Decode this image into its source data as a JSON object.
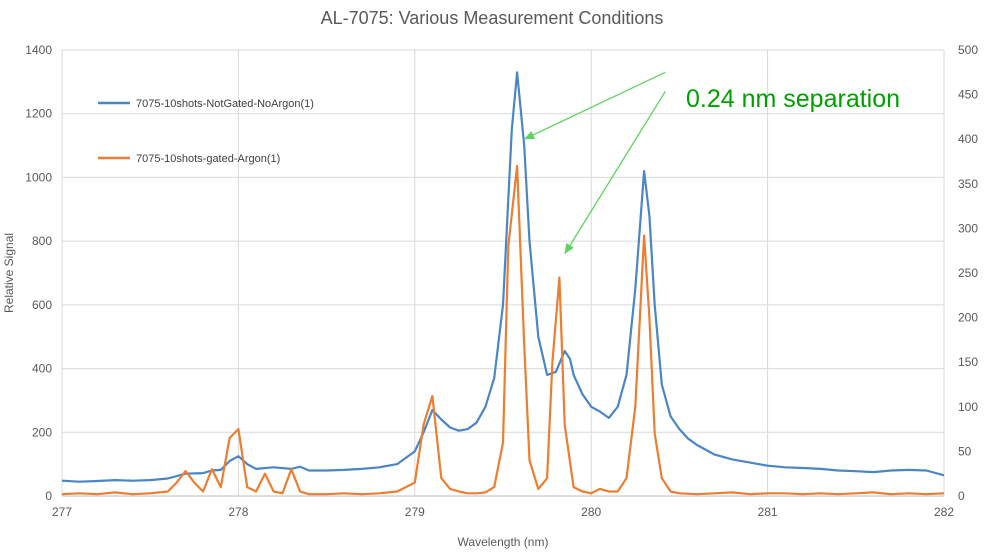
{
  "chart_data": {
    "type": "line",
    "title": "AL-7075: Various Measurement Conditions",
    "xlabel": "Wavelength (nm)",
    "ylabel": "Relative Signal",
    "xlim": [
      277,
      282
    ],
    "ylim": [
      0,
      1400
    ],
    "y2lim": [
      0,
      500
    ],
    "x_ticks": [
      277,
      278,
      279,
      280,
      281,
      282
    ],
    "y_ticks": [
      0,
      200,
      400,
      600,
      800,
      1000,
      1200,
      1400
    ],
    "y2_ticks": [
      0,
      50,
      100,
      150,
      200,
      250,
      300,
      350,
      400,
      450,
      500
    ],
    "grid": true,
    "legend_position": "top-left",
    "annotation": {
      "text": "0.24 nm separation",
      "color": "#00a000",
      "arrows": [
        {
          "from": [
            280.42,
            1330
          ],
          "to": [
            279.62,
            1120
          ]
        },
        {
          "from": [
            280.42,
            1270
          ],
          "to": [
            279.85,
            760
          ]
        }
      ]
    },
    "series": [
      {
        "name": "7075-10shots-NotGated-NoArgon(1)",
        "axis": "left",
        "color": "#4a86c5",
        "points": [
          [
            277.0,
            48
          ],
          [
            277.1,
            45
          ],
          [
            277.2,
            47
          ],
          [
            277.3,
            50
          ],
          [
            277.4,
            48
          ],
          [
            277.5,
            50
          ],
          [
            277.6,
            55
          ],
          [
            277.7,
            70
          ],
          [
            277.8,
            72
          ],
          [
            277.85,
            80
          ],
          [
            277.9,
            82
          ],
          [
            277.95,
            110
          ],
          [
            278.0,
            125
          ],
          [
            278.05,
            100
          ],
          [
            278.1,
            85
          ],
          [
            278.2,
            90
          ],
          [
            278.3,
            85
          ],
          [
            278.35,
            92
          ],
          [
            278.4,
            80
          ],
          [
            278.5,
            80
          ],
          [
            278.6,
            82
          ],
          [
            278.7,
            85
          ],
          [
            278.8,
            90
          ],
          [
            278.9,
            100
          ],
          [
            279.0,
            140
          ],
          [
            279.05,
            200
          ],
          [
            279.1,
            270
          ],
          [
            279.15,
            240
          ],
          [
            279.2,
            215
          ],
          [
            279.25,
            205
          ],
          [
            279.3,
            210
          ],
          [
            279.35,
            230
          ],
          [
            279.4,
            280
          ],
          [
            279.45,
            370
          ],
          [
            279.5,
            600
          ],
          [
            279.55,
            1150
          ],
          [
            279.58,
            1330
          ],
          [
            279.62,
            1100
          ],
          [
            279.65,
            800
          ],
          [
            279.7,
            500
          ],
          [
            279.75,
            380
          ],
          [
            279.8,
            390
          ],
          [
            279.85,
            455
          ],
          [
            279.88,
            430
          ],
          [
            279.9,
            380
          ],
          [
            279.95,
            320
          ],
          [
            280.0,
            280
          ],
          [
            280.05,
            265
          ],
          [
            280.1,
            245
          ],
          [
            280.15,
            280
          ],
          [
            280.2,
            380
          ],
          [
            280.25,
            650
          ],
          [
            280.3,
            1020
          ],
          [
            280.33,
            880
          ],
          [
            280.36,
            600
          ],
          [
            280.4,
            350
          ],
          [
            280.45,
            250
          ],
          [
            280.5,
            210
          ],
          [
            280.55,
            180
          ],
          [
            280.6,
            160
          ],
          [
            280.7,
            130
          ],
          [
            280.8,
            115
          ],
          [
            280.9,
            105
          ],
          [
            281.0,
            95
          ],
          [
            281.1,
            90
          ],
          [
            281.2,
            88
          ],
          [
            281.3,
            85
          ],
          [
            281.4,
            80
          ],
          [
            281.5,
            78
          ],
          [
            281.6,
            75
          ],
          [
            281.7,
            80
          ],
          [
            281.8,
            82
          ],
          [
            281.9,
            80
          ],
          [
            282.0,
            65
          ]
        ]
      },
      {
        "name": "7075-10shots-gated-Argon(1)",
        "axis": "right",
        "color": "#ed7d31",
        "points": [
          [
            277.0,
            2
          ],
          [
            277.1,
            3
          ],
          [
            277.2,
            2
          ],
          [
            277.3,
            4
          ],
          [
            277.4,
            2
          ],
          [
            277.5,
            3
          ],
          [
            277.6,
            5
          ],
          [
            277.65,
            15
          ],
          [
            277.7,
            28
          ],
          [
            277.75,
            15
          ],
          [
            277.8,
            5
          ],
          [
            277.85,
            30
          ],
          [
            277.9,
            10
          ],
          [
            277.95,
            65
          ],
          [
            278.0,
            75
          ],
          [
            278.05,
            10
          ],
          [
            278.1,
            5
          ],
          [
            278.15,
            25
          ],
          [
            278.2,
            5
          ],
          [
            278.25,
            3
          ],
          [
            278.3,
            30
          ],
          [
            278.35,
            5
          ],
          [
            278.4,
            2
          ],
          [
            278.5,
            2
          ],
          [
            278.6,
            3
          ],
          [
            278.7,
            2
          ],
          [
            278.8,
            3
          ],
          [
            278.9,
            5
          ],
          [
            279.0,
            15
          ],
          [
            279.05,
            80
          ],
          [
            279.1,
            112
          ],
          [
            279.15,
            20
          ],
          [
            279.2,
            8
          ],
          [
            279.25,
            5
          ],
          [
            279.3,
            3
          ],
          [
            279.35,
            3
          ],
          [
            279.4,
            4
          ],
          [
            279.45,
            10
          ],
          [
            279.5,
            60
          ],
          [
            279.53,
            280
          ],
          [
            279.58,
            370
          ],
          [
            279.62,
            170
          ],
          [
            279.65,
            40
          ],
          [
            279.7,
            8
          ],
          [
            279.75,
            20
          ],
          [
            279.78,
            150
          ],
          [
            279.82,
            245
          ],
          [
            279.85,
            80
          ],
          [
            279.9,
            10
          ],
          [
            279.95,
            5
          ],
          [
            280.0,
            3
          ],
          [
            280.05,
            8
          ],
          [
            280.1,
            5
          ],
          [
            280.15,
            5
          ],
          [
            280.2,
            20
          ],
          [
            280.25,
            100
          ],
          [
            280.3,
            292
          ],
          [
            280.33,
            200
          ],
          [
            280.36,
            70
          ],
          [
            280.4,
            20
          ],
          [
            280.45,
            5
          ],
          [
            280.5,
            3
          ],
          [
            280.6,
            2
          ],
          [
            280.7,
            3
          ],
          [
            280.8,
            4
          ],
          [
            280.9,
            2
          ],
          [
            281.0,
            3
          ],
          [
            281.1,
            3
          ],
          [
            281.2,
            2
          ],
          [
            281.3,
            3
          ],
          [
            281.4,
            2
          ],
          [
            281.5,
            3
          ],
          [
            281.6,
            4
          ],
          [
            281.7,
            2
          ],
          [
            281.8,
            3
          ],
          [
            281.9,
            2
          ],
          [
            282.0,
            3
          ]
        ]
      }
    ]
  }
}
